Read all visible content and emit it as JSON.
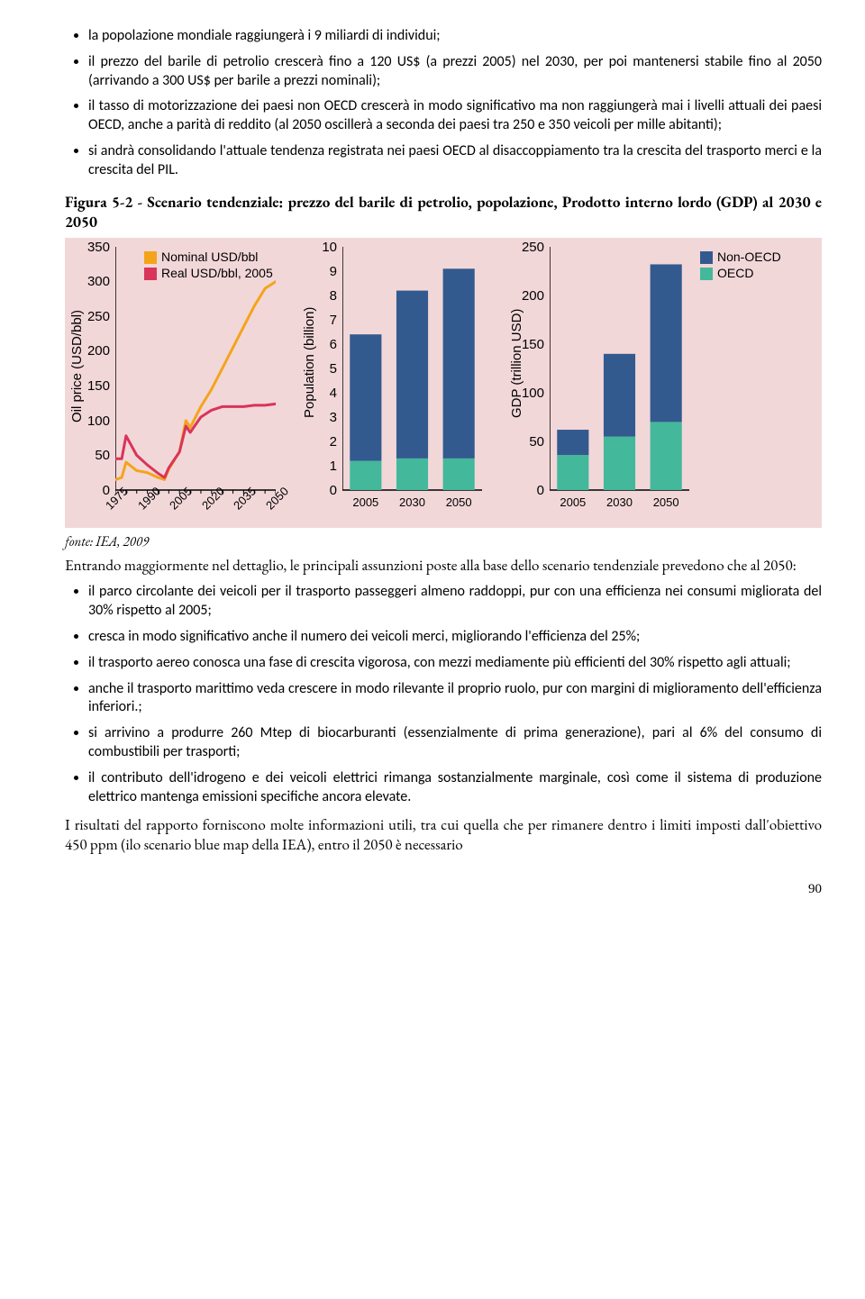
{
  "bullets_top": [
    "la popolazione mondiale raggiungerà i 9 miliardi di individui;",
    "il prezzo del barile di petrolio crescerà fino a 120 US$ (a prezzi 2005) nel 2030, per poi mantenersi stabile fino al 2050 (arrivando a 300 US$ per barile a prezzi nominali);",
    "il tasso di motorizzazione dei paesi non OECD crescerà in modo significativo ma non raggiungerà mai i livelli attuali dei paesi OECD, anche a parità di reddito (al 2050 oscillerà a seconda dei paesi tra 250 e 350 veicoli per mille abitanti);",
    "si andrà consolidando l'attuale tendenza registrata nei paesi OECD al disaccoppiamento tra la crescita del trasporto merci e la crescita del PIL."
  ],
  "figure_caption": "Figura 5-2 - Scenario tendenziale: prezzo del barile di petrolio, popolazione, Prodotto interno lordo (GDP) al 2030 e 2050",
  "fonte": "fonte: IEA, 2009",
  "para1": "Entrando maggiormente nel dettaglio, le principali assunzioni poste alla base dello scenario tendenziale prevedono che al 2050:",
  "bullets_bottom": [
    "il parco circolante dei veicoli per il trasporto passeggeri almeno raddoppi, pur con una efficienza nei consumi migliorata del 30% rispetto al 2005;",
    "cresca in modo significativo anche il numero dei veicoli merci, migliorando l'efficienza del 25%;",
    "il trasporto aereo conosca una fase di crescita vigorosa, con mezzi mediamente più efficienti del 30% rispetto agli attuali;",
    "anche il trasporto marittimo veda crescere in modo rilevante il proprio ruolo, pur con margini di miglioramento dell'efficienza inferiori.;",
    "si arrivino a produrre 260 Mtep di biocarburanti (essenzialmente di prima generazione), pari al 6% del consumo di combustibili per trasporti;",
    "il contributo dell'idrogeno e dei veicoli elettrici rimanga sostanzialmente marginale, così come il sistema di produzione elettrico mantenga emissioni specifiche ancora elevate."
  ],
  "para2": "I risultati del rapporto forniscono molte informazioni utili, tra cui quella che per rimanere dentro i limiti imposti dall'obiettivo 450 ppm (ilo scenario blue map della IEA), entro il 2050 è necessario",
  "page_number": "90",
  "chart": {
    "background": "#f2d7d9",
    "tick_font": 15,
    "panel1": {
      "type": "line",
      "ylabel": "Oil price (USD/bbl)",
      "ylim": [
        0,
        350
      ],
      "ytick_step": 50,
      "x_years": [
        1975,
        1990,
        2005,
        2020,
        2035,
        2050
      ],
      "series": [
        {
          "name": "Nominal USD/bbl",
          "color": "#f4a41a",
          "width": 3,
          "points": [
            [
              1975,
              15
            ],
            [
              1978,
              18
            ],
            [
              1980,
              40
            ],
            [
              1985,
              28
            ],
            [
              1990,
              25
            ],
            [
              1995,
              18
            ],
            [
              1998,
              15
            ],
            [
              2000,
              30
            ],
            [
              2005,
              55
            ],
            [
              2008,
              100
            ],
            [
              2010,
              90
            ],
            [
              2015,
              120
            ],
            [
              2020,
              145
            ],
            [
              2025,
              175
            ],
            [
              2030,
              205
            ],
            [
              2035,
              235
            ],
            [
              2040,
              265
            ],
            [
              2045,
              290
            ],
            [
              2050,
              300
            ]
          ]
        },
        {
          "name": "Real USD/bbl, 2005",
          "color": "#d93459",
          "width": 3,
          "points": [
            [
              1975,
              45
            ],
            [
              1978,
              45
            ],
            [
              1980,
              78
            ],
            [
              1985,
              50
            ],
            [
              1990,
              36
            ],
            [
              1995,
              24
            ],
            [
              1998,
              18
            ],
            [
              2000,
              32
            ],
            [
              2005,
              55
            ],
            [
              2008,
              92
            ],
            [
              2010,
              83
            ],
            [
              2015,
              105
            ],
            [
              2020,
              115
            ],
            [
              2025,
              120
            ],
            [
              2030,
              120
            ],
            [
              2035,
              120
            ],
            [
              2040,
              122
            ],
            [
              2045,
              122
            ],
            [
              2050,
              124
            ]
          ]
        }
      ],
      "legend_pos": "top-right"
    },
    "panel2": {
      "type": "stacked-bar",
      "ylabel": "Population (billion)",
      "ylim": [
        0,
        10
      ],
      "ytick_step": 1,
      "categories": [
        "2005",
        "2030",
        "2050"
      ],
      "stacks": [
        {
          "name": "OECD",
          "color": "#43b89b",
          "values": [
            1.2,
            1.3,
            1.3
          ]
        },
        {
          "name": "Non-OECD",
          "color": "#335a8e",
          "values": [
            5.2,
            6.9,
            7.8
          ]
        }
      ]
    },
    "panel3": {
      "type": "stacked-bar",
      "ylabel": "GDP (trillion USD)",
      "ylim": [
        0,
        250
      ],
      "ytick_step": 50,
      "categories": [
        "2005",
        "2030",
        "2050"
      ],
      "stacks": [
        {
          "name": "OECD",
          "color": "#43b89b",
          "values": [
            36,
            55,
            70
          ]
        },
        {
          "name": "Non-OECD",
          "color": "#335a8e",
          "values": [
            26,
            85,
            162
          ]
        }
      ],
      "legend_items": [
        {
          "name": "Non-OECD",
          "color": "#335a8e"
        },
        {
          "name": "OECD",
          "color": "#43b89b"
        }
      ]
    }
  }
}
